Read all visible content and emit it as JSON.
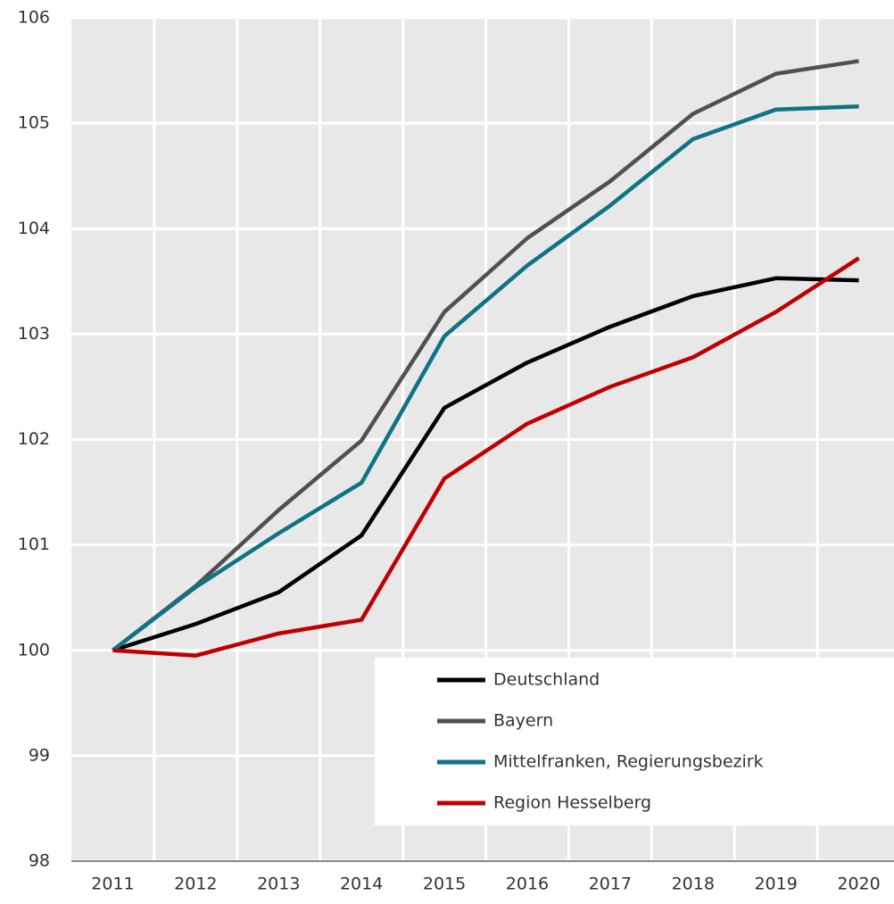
{
  "chart_data": {
    "type": "line",
    "categories": [
      "2011",
      "2012",
      "2013",
      "2014",
      "2015",
      "2016",
      "2017",
      "2018",
      "2019",
      "2020"
    ],
    "series": [
      {
        "name": "Deutschland",
        "color": "#000000",
        "values": [
          100,
          100.25,
          100.55,
          101.09,
          102.3,
          102.73,
          103.07,
          103.36,
          103.53,
          103.51
        ]
      },
      {
        "name": "Bayern",
        "color": "#505050",
        "values": [
          100,
          100.61,
          101.33,
          101.99,
          103.21,
          103.91,
          104.45,
          105.09,
          105.47,
          105.59
        ]
      },
      {
        "name": "Mittelfranken, Regierungsbezirk",
        "color": "#0e7384",
        "values": [
          100,
          100.6,
          101.11,
          101.59,
          102.98,
          103.65,
          104.22,
          104.85,
          105.13,
          105.16
        ]
      },
      {
        "name": "Region Hesselberg",
        "color": "#c00000",
        "values": [
          100,
          99.95,
          100.16,
          100.29,
          101.63,
          102.15,
          102.5,
          102.78,
          103.21,
          103.72
        ]
      }
    ],
    "ylim": [
      98,
      106
    ],
    "yticks": [
      98,
      99,
      100,
      101,
      102,
      103,
      104,
      105,
      106
    ],
    "grid": true,
    "legend": "lower right"
  }
}
